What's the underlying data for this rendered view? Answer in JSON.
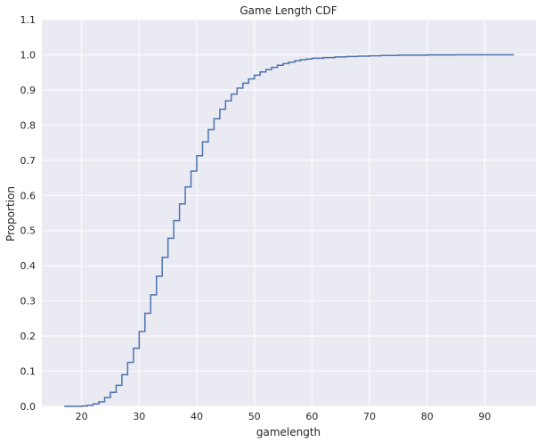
{
  "chart_data": {
    "type": "line",
    "title": "Game Length CDF",
    "xlabel": "gamelength",
    "ylabel": "Proportion",
    "xlim": [
      13.1,
      98.9
    ],
    "ylim": [
      0,
      1.1
    ],
    "xticks": [
      20,
      30,
      40,
      50,
      60,
      70,
      80,
      90
    ],
    "yticks": [
      0.0,
      0.1,
      0.2,
      0.3,
      0.4,
      0.5,
      0.6,
      0.7,
      0.8,
      0.9,
      1.0,
      1.1
    ],
    "grid": true,
    "background": "#eaeaf2",
    "grid_color": "#ffffff",
    "line_color": "#4c72b0",
    "series": [
      {
        "step": "post",
        "x": [
          17,
          20,
          21,
          22,
          23,
          24,
          25,
          26,
          27,
          28,
          29,
          30,
          31,
          32,
          33,
          34,
          35,
          36,
          37,
          38,
          39,
          40,
          41,
          42,
          43,
          44,
          45,
          46,
          47,
          48,
          49,
          50,
          51,
          52,
          53,
          54,
          55,
          56,
          57,
          58,
          59,
          60,
          62,
          64,
          66,
          68,
          70,
          72,
          75,
          80,
          85,
          90,
          95
        ],
        "y": [
          0.0,
          0.001,
          0.003,
          0.007,
          0.013,
          0.025,
          0.04,
          0.06,
          0.09,
          0.125,
          0.165,
          0.213,
          0.265,
          0.317,
          0.37,
          0.424,
          0.478,
          0.528,
          0.576,
          0.624,
          0.669,
          0.713,
          0.752,
          0.787,
          0.818,
          0.845,
          0.869,
          0.888,
          0.905,
          0.919,
          0.931,
          0.942,
          0.951,
          0.958,
          0.964,
          0.97,
          0.975,
          0.979,
          0.983,
          0.986,
          0.988,
          0.99,
          0.992,
          0.994,
          0.995,
          0.996,
          0.997,
          0.998,
          0.999,
          0.9995,
          0.9998,
          0.9999,
          1.0
        ]
      }
    ]
  }
}
